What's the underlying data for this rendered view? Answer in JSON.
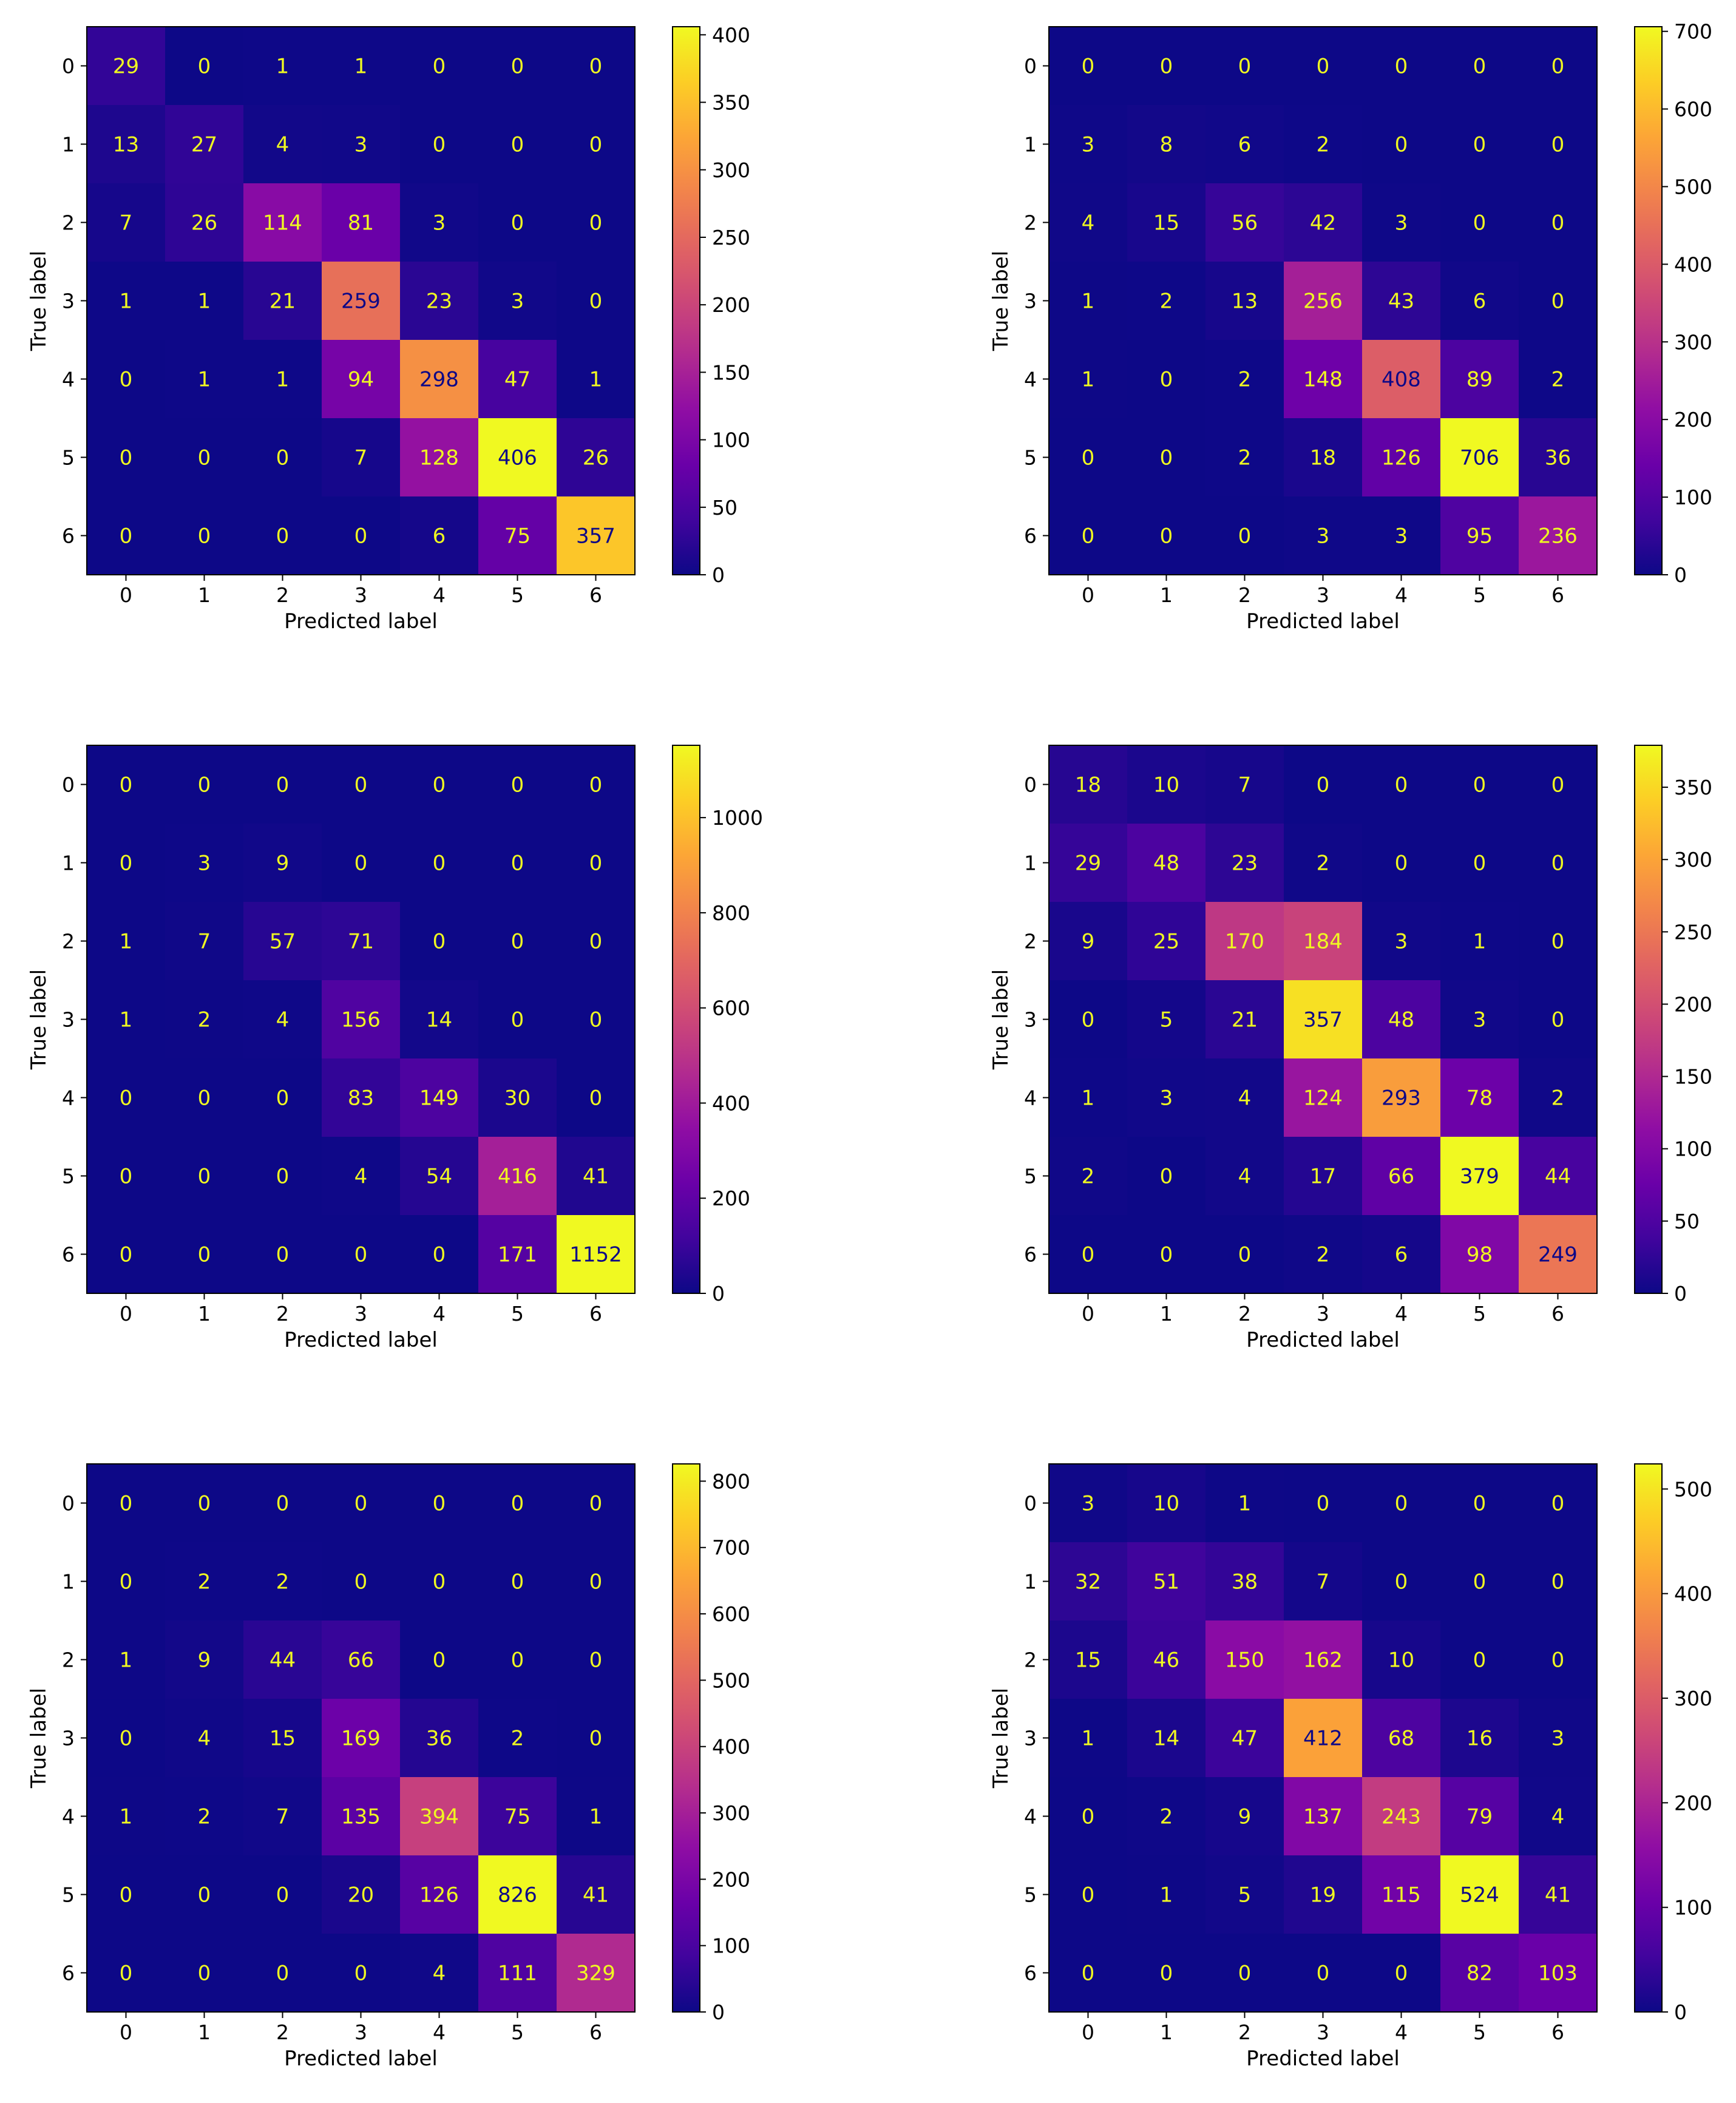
{
  "chart_data": [
    {
      "type": "heatmap",
      "xlabel": "Predicted label",
      "ylabel": "True label",
      "x_ticks": [
        "0",
        "1",
        "2",
        "3",
        "4",
        "5",
        "6"
      ],
      "y_ticks": [
        "0",
        "1",
        "2",
        "3",
        "4",
        "5",
        "6"
      ],
      "colormap": "plasma",
      "colorbar_ticks": [
        0,
        50,
        100,
        150,
        200,
        250,
        300,
        350,
        400
      ],
      "vmin": 0,
      "vmax": 406,
      "matrix": [
        [
          29,
          0,
          1,
          1,
          0,
          0,
          0
        ],
        [
          13,
          27,
          4,
          3,
          0,
          0,
          0
        ],
        [
          7,
          26,
          114,
          81,
          3,
          0,
          0
        ],
        [
          1,
          1,
          21,
          259,
          23,
          3,
          0
        ],
        [
          0,
          1,
          1,
          94,
          298,
          47,
          1
        ],
        [
          0,
          0,
          0,
          7,
          128,
          406,
          26
        ],
        [
          0,
          0,
          0,
          0,
          6,
          75,
          357
        ]
      ]
    },
    {
      "type": "heatmap",
      "xlabel": "Predicted label",
      "ylabel": "True label",
      "x_ticks": [
        "0",
        "1",
        "2",
        "3",
        "4",
        "5",
        "6"
      ],
      "y_ticks": [
        "0",
        "1",
        "2",
        "3",
        "4",
        "5",
        "6"
      ],
      "colormap": "plasma",
      "colorbar_ticks": [
        0,
        100,
        200,
        300,
        400,
        500,
        600,
        700
      ],
      "vmin": 0,
      "vmax": 706,
      "matrix": [
        [
          0,
          0,
          0,
          0,
          0,
          0,
          0
        ],
        [
          3,
          8,
          6,
          2,
          0,
          0,
          0
        ],
        [
          4,
          15,
          56,
          42,
          3,
          0,
          0
        ],
        [
          1,
          2,
          13,
          256,
          43,
          6,
          0
        ],
        [
          1,
          0,
          2,
          148,
          408,
          89,
          2
        ],
        [
          0,
          0,
          2,
          18,
          126,
          706,
          36
        ],
        [
          0,
          0,
          0,
          3,
          3,
          95,
          236
        ]
      ]
    },
    {
      "type": "heatmap",
      "xlabel": "Predicted label",
      "ylabel": "True label",
      "x_ticks": [
        "0",
        "1",
        "2",
        "3",
        "4",
        "5",
        "6"
      ],
      "y_ticks": [
        "0",
        "1",
        "2",
        "3",
        "4",
        "5",
        "6"
      ],
      "colormap": "plasma",
      "colorbar_ticks": [
        0,
        200,
        400,
        600,
        800,
        1000
      ],
      "vmin": 0,
      "vmax": 1152,
      "matrix": [
        [
          0,
          0,
          0,
          0,
          0,
          0,
          0
        ],
        [
          0,
          3,
          9,
          0,
          0,
          0,
          0
        ],
        [
          1,
          7,
          57,
          71,
          0,
          0,
          0
        ],
        [
          1,
          2,
          4,
          156,
          14,
          0,
          0
        ],
        [
          0,
          0,
          0,
          83,
          149,
          30,
          0
        ],
        [
          0,
          0,
          0,
          4,
          54,
          416,
          41
        ],
        [
          0,
          0,
          0,
          0,
          0,
          171,
          1152
        ]
      ]
    },
    {
      "type": "heatmap",
      "xlabel": "Predicted label",
      "ylabel": "True label",
      "x_ticks": [
        "0",
        "1",
        "2",
        "3",
        "4",
        "5",
        "6"
      ],
      "y_ticks": [
        "0",
        "1",
        "2",
        "3",
        "4",
        "5",
        "6"
      ],
      "colormap": "plasma",
      "colorbar_ticks": [
        0,
        50,
        100,
        150,
        200,
        250,
        300,
        350
      ],
      "vmin": 0,
      "vmax": 379,
      "matrix": [
        [
          18,
          10,
          7,
          0,
          0,
          0,
          0
        ],
        [
          29,
          48,
          23,
          2,
          0,
          0,
          0
        ],
        [
          9,
          25,
          170,
          184,
          3,
          1,
          0
        ],
        [
          0,
          5,
          21,
          357,
          48,
          3,
          0
        ],
        [
          1,
          3,
          4,
          124,
          293,
          78,
          2
        ],
        [
          2,
          0,
          4,
          17,
          66,
          379,
          44
        ],
        [
          0,
          0,
          0,
          2,
          6,
          98,
          249
        ]
      ]
    },
    {
      "type": "heatmap",
      "xlabel": "Predicted label",
      "ylabel": "True label",
      "x_ticks": [
        "0",
        "1",
        "2",
        "3",
        "4",
        "5",
        "6"
      ],
      "y_ticks": [
        "0",
        "1",
        "2",
        "3",
        "4",
        "5",
        "6"
      ],
      "colormap": "plasma",
      "colorbar_ticks": [
        0,
        100,
        200,
        300,
        400,
        500,
        600,
        700,
        800
      ],
      "vmin": 0,
      "vmax": 826,
      "matrix": [
        [
          0,
          0,
          0,
          0,
          0,
          0,
          0
        ],
        [
          0,
          2,
          2,
          0,
          0,
          0,
          0
        ],
        [
          1,
          9,
          44,
          66,
          0,
          0,
          0
        ],
        [
          0,
          4,
          15,
          169,
          36,
          2,
          0
        ],
        [
          1,
          2,
          7,
          135,
          394,
          75,
          1
        ],
        [
          0,
          0,
          0,
          20,
          126,
          826,
          41
        ],
        [
          0,
          0,
          0,
          0,
          4,
          111,
          329
        ]
      ]
    },
    {
      "type": "heatmap",
      "xlabel": "Predicted label",
      "ylabel": "True label",
      "x_ticks": [
        "0",
        "1",
        "2",
        "3",
        "4",
        "5",
        "6"
      ],
      "y_ticks": [
        "0",
        "1",
        "2",
        "3",
        "4",
        "5",
        "6"
      ],
      "colormap": "plasma",
      "colorbar_ticks": [
        0,
        100,
        200,
        300,
        400,
        500
      ],
      "vmin": 0,
      "vmax": 524,
      "matrix": [
        [
          3,
          10,
          1,
          0,
          0,
          0,
          0
        ],
        [
          32,
          51,
          38,
          7,
          0,
          0,
          0
        ],
        [
          15,
          46,
          150,
          162,
          10,
          0,
          0
        ],
        [
          1,
          14,
          47,
          412,
          68,
          16,
          3
        ],
        [
          0,
          2,
          9,
          137,
          243,
          79,
          4
        ],
        [
          0,
          1,
          5,
          19,
          115,
          524,
          41
        ],
        [
          0,
          0,
          0,
          0,
          0,
          82,
          103
        ]
      ]
    }
  ]
}
